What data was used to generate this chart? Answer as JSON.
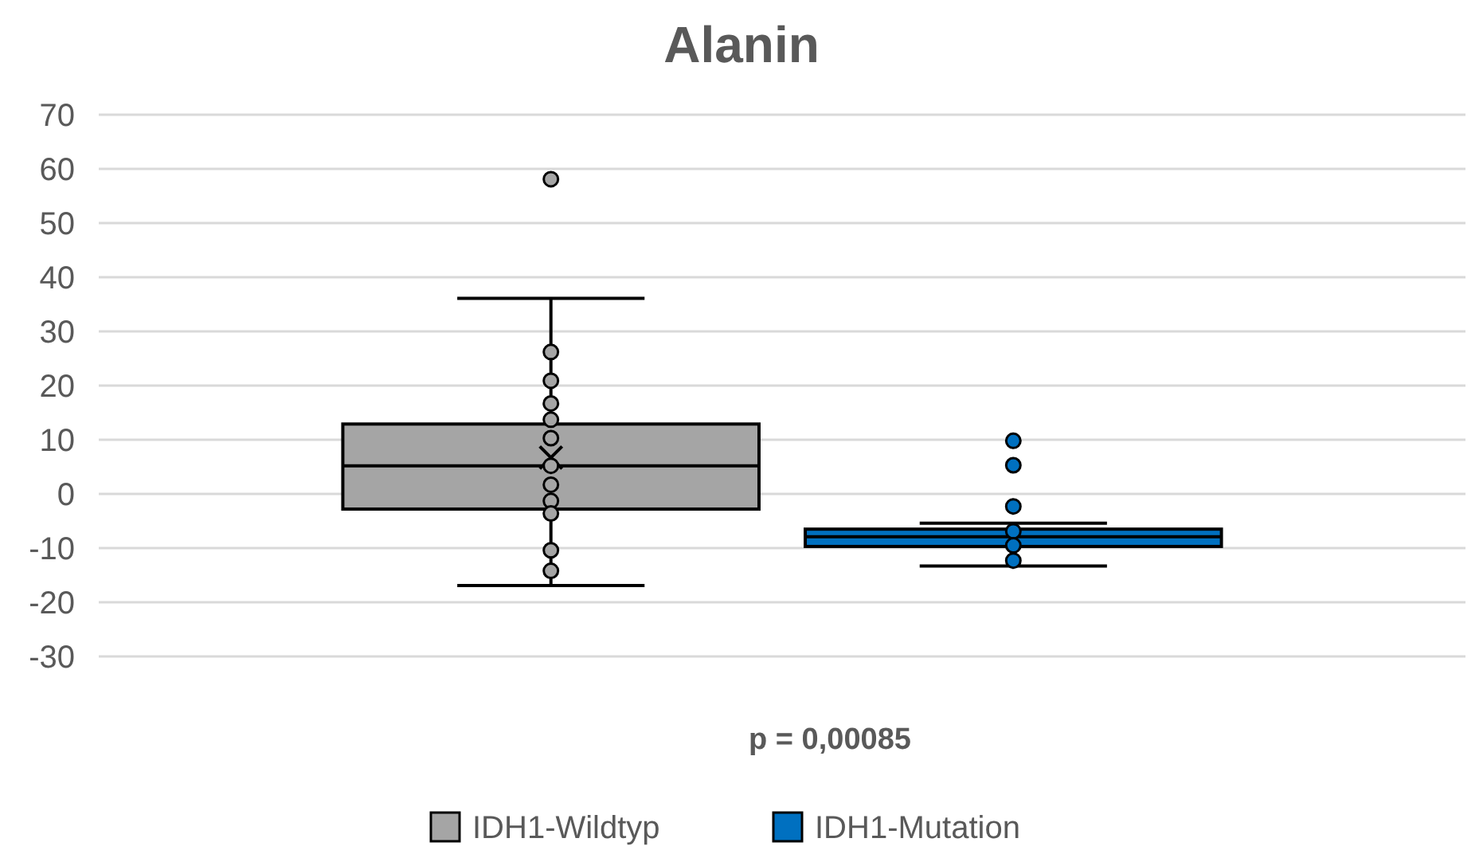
{
  "chart_data": {
    "type": "box",
    "title": "Alanin",
    "xlabel": "p = 0,00085",
    "categories": [
      null
    ],
    "ylim": [
      -30,
      70
    ],
    "yticks": [
      -30,
      -20,
      -10,
      0,
      10,
      20,
      30,
      40,
      50,
      60,
      70
    ],
    "grid": "y",
    "legend": "bottom",
    "series": [
      {
        "name": "IDH1-Wildtyp",
        "color": "#a5a5a5",
        "boxes": [
          {
            "low": -16.9,
            "q1": -2.8,
            "median": 5.2,
            "q3": 12.9,
            "high": 36.1,
            "mean": 6.7,
            "outliers": [
              58.1,
              26.2,
              20.9,
              16.7,
              13.7,
              10.3,
              5.2,
              1.7,
              -1.3,
              -3.6,
              -10.4,
              -14.2
            ]
          }
        ]
      },
      {
        "name": "IDH1-Mutation",
        "color": "#0070c0",
        "boxes": [
          {
            "low": -13.3,
            "q1": -9.7,
            "median": -7.9,
            "q3": -6.5,
            "high": -5.4,
            "outliers": [
              9.8,
              5.3,
              -2.3,
              -6.9,
              -9.5,
              -12.3
            ]
          }
        ]
      }
    ]
  }
}
